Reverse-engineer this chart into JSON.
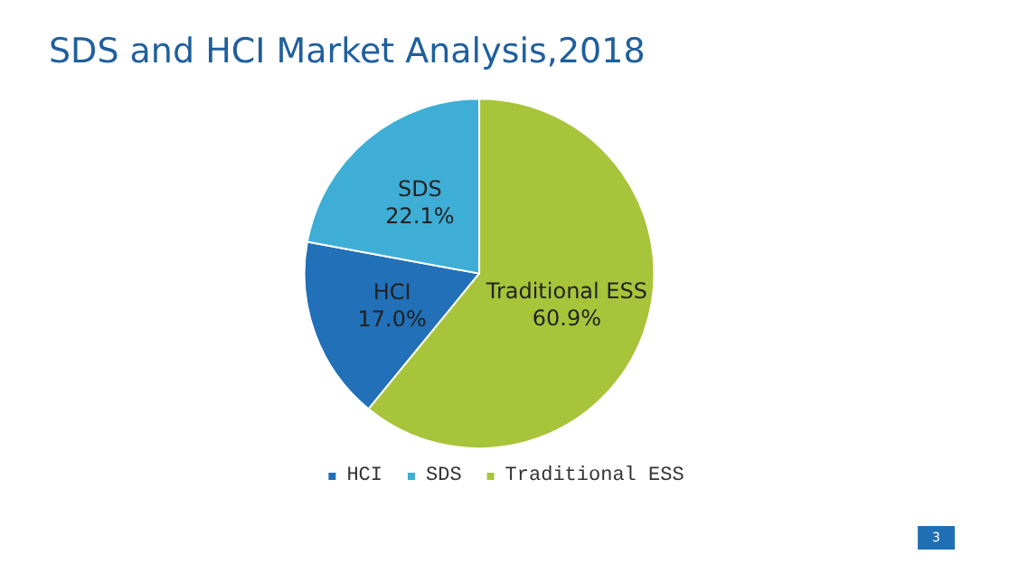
{
  "chart_data": {
    "type": "pie",
    "title": "SDS and HCI Market Analysis,2018",
    "categories": [
      "HCI",
      "SDS",
      "Traditional ESS"
    ],
    "values": [
      17.0,
      22.1,
      60.9
    ],
    "colors": [
      "#2170b8",
      "#3eaed6",
      "#a8c43a"
    ],
    "value_labels": [
      "17.0%",
      "22.1%",
      "60.9%"
    ],
    "legend": "bottom",
    "annotations": [
      "3"
    ]
  }
}
